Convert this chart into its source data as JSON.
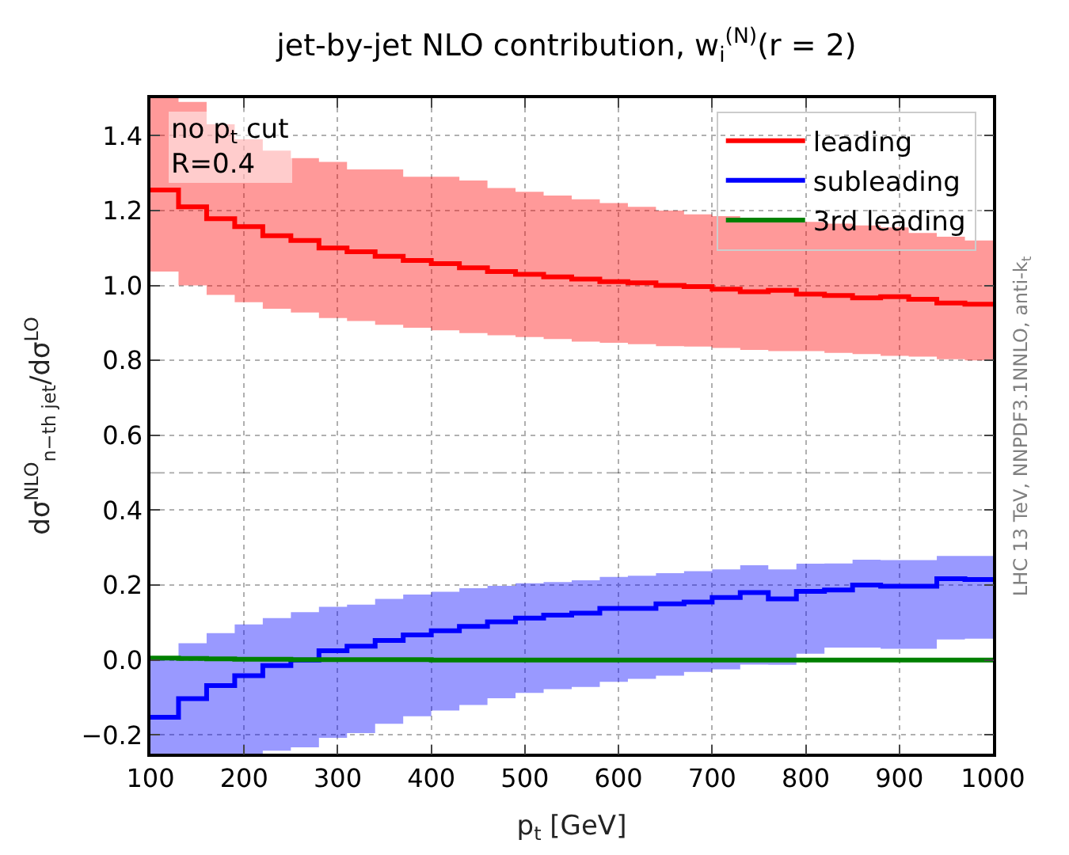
{
  "chart_data": {
    "type": "step",
    "title": "jet-by-jet NLO contribution, w$_{i}$$^{(N)}$(r = 2)",
    "xlabel": "p$_{t}$ [GeV]",
    "ylabel": "dσ$^{NLO}$$_{n−th jet}$/dσ$^{LO}$",
    "x": [
      100,
      130,
      160,
      190,
      220,
      250,
      280,
      310,
      340,
      370,
      400,
      430,
      460,
      490,
      520,
      550,
      580,
      610,
      640,
      670,
      700,
      730,
      760,
      790,
      820,
      850,
      880,
      910,
      940,
      970,
      1000
    ],
    "series": [
      {
        "name": "leading",
        "color": "#ff0000",
        "values": [
          1.255,
          1.21,
          1.178,
          1.157,
          1.133,
          1.12,
          1.1,
          1.09,
          1.078,
          1.067,
          1.058,
          1.047,
          1.037,
          1.03,
          1.023,
          1.017,
          1.01,
          1.007,
          1.0,
          0.997,
          0.99,
          0.983,
          0.987,
          0.977,
          0.973,
          0.967,
          0.97,
          0.963,
          0.953,
          0.95,
          0.95
        ],
        "lower": [
          1.037,
          1.0,
          0.975,
          0.955,
          0.938,
          0.928,
          0.913,
          0.905,
          0.895,
          0.887,
          0.88,
          0.873,
          0.867,
          0.862,
          0.857,
          0.85,
          0.847,
          0.843,
          0.838,
          0.837,
          0.833,
          0.828,
          0.825,
          0.825,
          0.82,
          0.817,
          0.812,
          0.81,
          0.803,
          0.8,
          0.8
        ],
        "upper": [
          1.5,
          1.49,
          1.43,
          1.39,
          1.36,
          1.34,
          1.33,
          1.31,
          1.31,
          1.29,
          1.29,
          1.28,
          1.26,
          1.25,
          1.24,
          1.23,
          1.22,
          1.21,
          1.2,
          1.19,
          1.185,
          1.18,
          1.175,
          1.17,
          1.165,
          1.16,
          1.155,
          1.14,
          1.13,
          1.12,
          1.12
        ]
      },
      {
        "name": "subleading",
        "color": "#0000ff",
        "values": [
          -0.153,
          -0.103,
          -0.068,
          -0.042,
          -0.015,
          0.0,
          0.025,
          0.037,
          0.052,
          0.067,
          0.078,
          0.09,
          0.102,
          0.112,
          0.12,
          0.125,
          0.138,
          0.138,
          0.15,
          0.155,
          0.167,
          0.18,
          0.163,
          0.183,
          0.187,
          0.2,
          0.197,
          0.197,
          0.217,
          0.215,
          0.215
        ],
        "lower": [
          -0.25,
          -0.25,
          -0.25,
          -0.25,
          -0.242,
          -0.233,
          -0.208,
          -0.195,
          -0.17,
          -0.15,
          -0.135,
          -0.12,
          -0.102,
          -0.088,
          -0.078,
          -0.072,
          -0.058,
          -0.05,
          -0.042,
          -0.032,
          -0.025,
          -0.012,
          -0.013,
          0.017,
          0.033,
          0.033,
          0.03,
          0.03,
          0.055,
          0.057,
          0.057
        ],
        "upper": [
          0.005,
          0.045,
          0.072,
          0.095,
          0.112,
          0.128,
          0.142,
          0.148,
          0.163,
          0.175,
          0.182,
          0.192,
          0.198,
          0.205,
          0.208,
          0.213,
          0.222,
          0.225,
          0.232,
          0.237,
          0.242,
          0.253,
          0.242,
          0.257,
          0.258,
          0.268,
          0.267,
          0.267,
          0.278,
          0.278,
          0.278
        ]
      },
      {
        "name": "3rd leading",
        "color": "#008000",
        "values": [
          0.005,
          0.004,
          0.003,
          0.002,
          0.002,
          0.001,
          0.001,
          0.001,
          0.001,
          0.001,
          0.0,
          0.0,
          0.0,
          0.0,
          0.0,
          0.0,
          0.0,
          0.0,
          0.0,
          0.0,
          0.0,
          0.0,
          0.0,
          0.0,
          0.0,
          0.0,
          0.0,
          0.0,
          0.0,
          0.0,
          0.0
        ]
      }
    ],
    "xlim": [
      100,
      1000
    ],
    "xticks": [
      100,
      200,
      300,
      400,
      500,
      600,
      700,
      800,
      900,
      1000
    ],
    "ylim": [
      -0.25,
      1.5
    ],
    "yticks": [
      {
        "value": -0.2,
        "label": "−0.2"
      },
      {
        "value": 0,
        "label": "0.0"
      },
      0.2,
      0.4,
      0.6,
      0.8,
      {
        "value": 1,
        "label": "1.0"
      },
      1.2,
      1.4
    ],
    "ref_lines": [
      {
        "axis": "y",
        "value": 0.5,
        "color": "#000000",
        "line_style": "dashdot"
      }
    ],
    "annotations": [
      "no p$_{t}$ cut\nR=0.4",
      "LHC 13 TeV, NNPDF3.1NNLO, anti-k$_{t}$"
    ],
    "grid": true,
    "legend": "top right",
    "line_style": "solid"
  }
}
